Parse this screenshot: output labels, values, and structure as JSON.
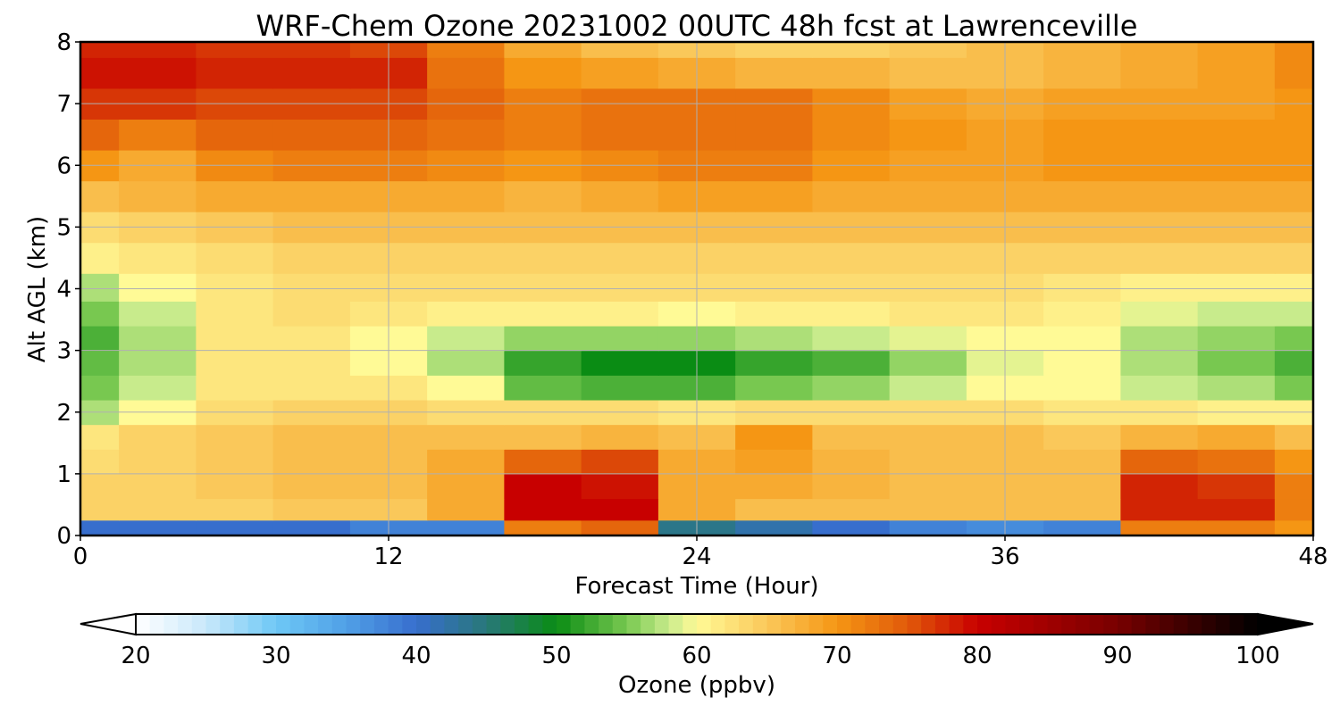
{
  "chart_data": {
    "type": "heatmap",
    "title": "WRF-Chem Ozone  20231002 00UTC 48h fcst at Lawrenceville",
    "xlabel": "Forecast Time (Hour)",
    "ylabel": "Alt AGL (km)",
    "xlim": [
      0,
      48
    ],
    "ylim": [
      0,
      8
    ],
    "xticks": [
      0,
      12,
      24,
      36,
      48
    ],
    "yticks": [
      0,
      1,
      2,
      3,
      4,
      5,
      6,
      7,
      8
    ],
    "grid": true,
    "x": [
      0,
      3,
      6,
      9,
      12,
      15,
      18,
      21,
      24,
      27,
      30,
      33,
      36,
      39,
      42,
      45,
      48
    ],
    "y": [
      0.1,
      0.4,
      0.8,
      1.2,
      1.6,
      2.0,
      2.4,
      2.8,
      3.2,
      3.6,
      4.0,
      4.5,
      5.0,
      5.5,
      6.0,
      6.5,
      7.0,
      7.5,
      8.0
    ],
    "z": [
      [
        40,
        40,
        40,
        40,
        38,
        38,
        72,
        74,
        44,
        42,
        40,
        38,
        37,
        38,
        72,
        72,
        70
      ],
      [
        64,
        64,
        64,
        65,
        65,
        68,
        80,
        80,
        68,
        66,
        66,
        66,
        66,
        66,
        78,
        78,
        72
      ],
      [
        64,
        64,
        65,
        66,
        66,
        68,
        80,
        79,
        68,
        68,
        67,
        66,
        66,
        66,
        78,
        77,
        72
      ],
      [
        63,
        64,
        65,
        66,
        66,
        68,
        74,
        76,
        68,
        69,
        67,
        66,
        66,
        66,
        74,
        73,
        70
      ],
      [
        62,
        64,
        65,
        66,
        66,
        66,
        66,
        67,
        66,
        70,
        66,
        66,
        66,
        65,
        67,
        68,
        66
      ],
      [
        57,
        60,
        63,
        64,
        64,
        63,
        63,
        63,
        62,
        63,
        63,
        63,
        63,
        62,
        62,
        61,
        61
      ],
      [
        55,
        58,
        62,
        62,
        62,
        60,
        54,
        53,
        53,
        55,
        56,
        58,
        60,
        60,
        58,
        57,
        55
      ],
      [
        54,
        57,
        62,
        62,
        60,
        57,
        52,
        50,
        50,
        52,
        53,
        56,
        59,
        60,
        57,
        55,
        53
      ],
      [
        53,
        57,
        62,
        62,
        60,
        58,
        56,
        56,
        56,
        57,
        58,
        59,
        60,
        60,
        57,
        56,
        55
      ],
      [
        55,
        58,
        62,
        63,
        62,
        61,
        61,
        61,
        60,
        61,
        61,
        62,
        62,
        61,
        59,
        58,
        58
      ],
      [
        57,
        60,
        62,
        63,
        63,
        63,
        63,
        63,
        63,
        63,
        63,
        63,
        63,
        62,
        61,
        61,
        61
      ],
      [
        61,
        62,
        63,
        64,
        64,
        64,
        64,
        64,
        64,
        64,
        64,
        64,
        64,
        64,
        64,
        64,
        64
      ],
      [
        63,
        64,
        65,
        66,
        66,
        66,
        66,
        66,
        66,
        66,
        66,
        66,
        66,
        66,
        66,
        66,
        66
      ],
      [
        66,
        67,
        68,
        68,
        68,
        68,
        67,
        68,
        69,
        69,
        68,
        68,
        68,
        68,
        68,
        68,
        68
      ],
      [
        70,
        68,
        71,
        72,
        72,
        71,
        70,
        71,
        72,
        72,
        70,
        69,
        69,
        70,
        70,
        70,
        70
      ],
      [
        74,
        72,
        74,
        74,
        74,
        73,
        72,
        73,
        73,
        73,
        71,
        70,
        69,
        70,
        70,
        70,
        70
      ],
      [
        77,
        77,
        76,
        76,
        76,
        74,
        72,
        73,
        73,
        73,
        71,
        69,
        68,
        69,
        69,
        69,
        70
      ],
      [
        79,
        79,
        78,
        78,
        78,
        73,
        70,
        69,
        68,
        67,
        67,
        66,
        66,
        67,
        68,
        69,
        71
      ],
      [
        78,
        78,
        77,
        77,
        76,
        72,
        68,
        66,
        65,
        64,
        64,
        65,
        66,
        67,
        68,
        69,
        71
      ]
    ],
    "colorbar": {
      "label": "Ozone  (ppbv)",
      "min": 20,
      "max": 100,
      "ticks": [
        20,
        30,
        40,
        50,
        60,
        70,
        80,
        90,
        100
      ],
      "extend": "both"
    }
  }
}
